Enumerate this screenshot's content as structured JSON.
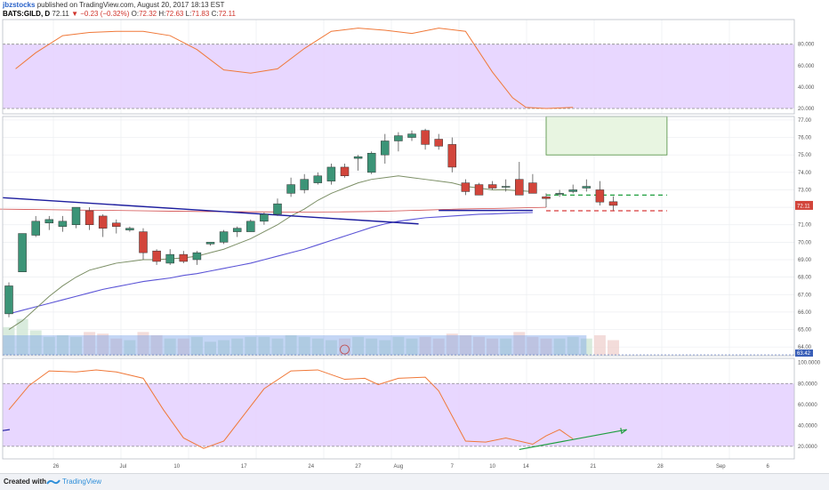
{
  "header": {
    "author": "jbzstocks",
    "published": "published on TradingView.com, August 20, 2017 18:13 EST",
    "symbol": "BATS:GILD, D",
    "price": "72.11",
    "change": "−0.23 (−0.32%)",
    "open_label": "O:",
    "open": "72.32",
    "high_label": "H:",
    "high": "72.63",
    "low_label": "L:",
    "low": "71.83",
    "close_label": "C:",
    "close": "72.11"
  },
  "footer": {
    "created_with": "Created with",
    "brand": "TradingView"
  },
  "colors": {
    "up": "#3c9477",
    "down": "#d2453b",
    "osc_band": "#e6d3ff",
    "osc_line": "#f07838",
    "ma_long": "#5b54d6",
    "ma_short": "#7c8f66",
    "trend_blue": "#1d1d9e",
    "target_green": "#1e9e3e",
    "target_red": "#d63a3a"
  },
  "chart_data": [
    {
      "type": "line",
      "panel": "oscillator-top",
      "y_ticks": [
        "80.000",
        "60.000",
        "40.000",
        "20.000"
      ],
      "ylim": [
        15,
        103
      ],
      "band": [
        20,
        80
      ],
      "series": [
        {
          "x": [
            0.5,
            2,
            4,
            6,
            8,
            10,
            12,
            14,
            16,
            18,
            20,
            22,
            24,
            26,
            28,
            30,
            32,
            34,
            36,
            37.5,
            38.5,
            40,
            42
          ],
          "values": [
            57,
            72,
            88,
            91,
            92,
            92,
            88,
            75,
            56,
            53,
            57,
            76,
            92,
            95,
            93,
            90,
            95,
            92,
            54,
            30,
            21,
            20,
            21
          ]
        }
      ]
    },
    {
      "type": "candlestick",
      "panel": "price",
      "x_ticks": [
        "26",
        "Jul",
        "10",
        "17",
        "24",
        "27",
        "Aug",
        "7",
        "10",
        "14",
        "21",
        "28",
        "Sep",
        "6"
      ],
      "y_ticks": [
        "77.00",
        "76.00",
        "75.00",
        "74.00",
        "73.00",
        "72.00",
        "71.00",
        "70.00",
        "69.00",
        "68.00",
        "67.00",
        "66.00",
        "65.00",
        "64.00"
      ],
      "ylim": [
        63.5,
        77.2
      ],
      "last_price": "72.11",
      "volume_label": "63.42",
      "candles": [
        {
          "o": 65.9,
          "h": 67.7,
          "l": 65.7,
          "c": 67.5
        },
        {
          "o": 68.3,
          "h": 70.5,
          "l": 68.3,
          "c": 70.5
        },
        {
          "o": 70.4,
          "h": 71.5,
          "l": 70.3,
          "c": 71.2
        },
        {
          "o": 71.1,
          "h": 71.5,
          "l": 70.7,
          "c": 71.3
        },
        {
          "o": 70.9,
          "h": 71.5,
          "l": 70.6,
          "c": 71.2
        },
        {
          "o": 71.0,
          "h": 72.0,
          "l": 70.8,
          "c": 72.0
        },
        {
          "o": 71.8,
          "h": 72.0,
          "l": 70.7,
          "c": 71.0
        },
        {
          "o": 71.5,
          "h": 71.6,
          "l": 70.3,
          "c": 70.8
        },
        {
          "o": 71.1,
          "h": 71.3,
          "l": 70.5,
          "c": 70.9
        },
        {
          "o": 70.7,
          "h": 70.9,
          "l": 70.6,
          "c": 70.8
        },
        {
          "o": 70.6,
          "h": 70.8,
          "l": 69.0,
          "c": 69.4
        },
        {
          "o": 69.5,
          "h": 69.6,
          "l": 68.7,
          "c": 68.9
        },
        {
          "o": 68.8,
          "h": 69.6,
          "l": 68.7,
          "c": 69.3
        },
        {
          "o": 69.3,
          "h": 69.5,
          "l": 68.8,
          "c": 68.9
        },
        {
          "o": 69.0,
          "h": 69.5,
          "l": 68.7,
          "c": 69.4
        },
        {
          "o": 69.9,
          "h": 70.0,
          "l": 69.8,
          "c": 70.0
        },
        {
          "o": 70.0,
          "h": 70.7,
          "l": 69.9,
          "c": 70.6
        },
        {
          "o": 70.6,
          "h": 70.9,
          "l": 70.3,
          "c": 70.8
        },
        {
          "o": 70.6,
          "h": 71.3,
          "l": 70.6,
          "c": 71.2
        },
        {
          "o": 71.2,
          "h": 71.7,
          "l": 71.0,
          "c": 71.6
        },
        {
          "o": 71.6,
          "h": 72.5,
          "l": 71.5,
          "c": 72.2
        },
        {
          "o": 72.8,
          "h": 73.7,
          "l": 72.6,
          "c": 73.3
        },
        {
          "o": 73.0,
          "h": 73.9,
          "l": 72.8,
          "c": 73.6
        },
        {
          "o": 73.4,
          "h": 74.0,
          "l": 73.3,
          "c": 73.8
        },
        {
          "o": 73.5,
          "h": 74.5,
          "l": 73.3,
          "c": 74.3
        },
        {
          "o": 74.3,
          "h": 74.5,
          "l": 73.7,
          "c": 73.8
        },
        {
          "o": 74.8,
          "h": 75.0,
          "l": 74.1,
          "c": 74.9
        },
        {
          "o": 74.0,
          "h": 75.2,
          "l": 73.9,
          "c": 75.1
        },
        {
          "o": 75.0,
          "h": 76.2,
          "l": 74.5,
          "c": 75.8
        },
        {
          "o": 75.8,
          "h": 76.3,
          "l": 75.2,
          "c": 76.1
        },
        {
          "o": 76.0,
          "h": 76.4,
          "l": 75.8,
          "c": 76.2
        },
        {
          "o": 76.4,
          "h": 76.5,
          "l": 75.3,
          "c": 75.6
        },
        {
          "o": 75.9,
          "h": 76.2,
          "l": 75.3,
          "c": 75.5
        },
        {
          "o": 75.6,
          "h": 76.0,
          "l": 74.0,
          "c": 74.3
        },
        {
          "o": 73.4,
          "h": 73.6,
          "l": 72.7,
          "c": 72.9
        },
        {
          "o": 73.3,
          "h": 73.4,
          "l": 72.7,
          "c": 72.7
        },
        {
          "o": 73.3,
          "h": 73.5,
          "l": 73.0,
          "c": 73.1
        },
        {
          "o": 73.2,
          "h": 73.6,
          "l": 72.9,
          "c": 73.2
        },
        {
          "o": 73.6,
          "h": 74.6,
          "l": 72.7,
          "c": 72.7
        },
        {
          "o": 73.4,
          "h": 73.9,
          "l": 72.9,
          "c": 72.8
        },
        {
          "o": 72.6,
          "h": 72.8,
          "l": 72.0,
          "c": 72.5
        },
        {
          "o": 72.8,
          "h": 73.0,
          "l": 72.6,
          "c": 72.8
        },
        {
          "o": 72.9,
          "h": 73.3,
          "l": 72.8,
          "c": 73.0
        },
        {
          "o": 73.1,
          "h": 73.6,
          "l": 72.9,
          "c": 73.2
        },
        {
          "o": 73.0,
          "h": 73.5,
          "l": 72.1,
          "c": 72.3
        },
        {
          "o": 72.32,
          "h": 72.63,
          "l": 71.83,
          "c": 72.11
        }
      ],
      "volume": [
        85,
        110,
        75,
        55,
        60,
        55,
        70,
        65,
        50,
        45,
        70,
        60,
        50,
        50,
        55,
        40,
        45,
        50,
        55,
        55,
        50,
        60,
        55,
        50,
        45,
        50,
        55,
        50,
        45,
        55,
        50,
        55,
        50,
        65,
        60,
        55,
        50,
        50,
        70,
        55,
        50,
        50,
        55,
        50,
        60,
        45
      ],
      "ma_short": [
        65.0,
        65.5,
        66.2,
        66.9,
        67.5,
        68.0,
        68.4,
        68.6,
        68.8,
        68.9,
        69.0,
        69.0,
        69.05,
        69.1,
        69.2,
        69.4,
        69.6,
        69.9,
        70.2,
        70.6,
        71.0,
        71.5,
        71.9,
        72.4,
        72.8,
        73.1,
        73.4,
        73.6,
        73.7,
        73.8,
        73.7,
        73.6,
        73.5,
        73.4,
        73.2,
        73.1,
        73.0,
        73.0,
        72.95,
        72.9
      ],
      "ma_long": [
        65.9,
        66.1,
        66.3,
        66.5,
        66.7,
        66.9,
        67.1,
        67.3,
        67.45,
        67.6,
        67.75,
        67.85,
        67.95,
        68.1,
        68.2,
        68.35,
        68.5,
        68.65,
        68.8,
        69.0,
        69.2,
        69.4,
        69.6,
        69.85,
        70.1,
        70.35,
        70.6,
        70.85,
        71.05,
        71.2,
        71.3,
        71.4,
        71.45,
        71.5,
        71.55,
        71.6,
        71.62,
        71.65,
        71.68,
        71.7
      ],
      "ma_red": [
        71.9,
        71.88,
        71.86,
        71.84,
        71.82,
        71.8,
        71.78,
        71.76,
        71.75,
        71.74,
        71.73,
        71.73,
        71.74,
        71.76,
        71.8,
        71.85,
        71.9,
        71.93,
        71.96,
        72.0
      ],
      "trendline": [
        [
          -1,
          72.55
        ],
        [
          30.5,
          71.05
        ]
      ],
      "support_line": [
        [
          32,
          71.82
        ],
        [
          39,
          71.82
        ]
      ],
      "target_box": [
        40,
        75.0,
        49,
        77.2
      ],
      "target_line_green": [
        [
          40,
          72.7
        ],
        [
          49,
          72.7
        ]
      ],
      "target_line_red": [
        [
          40,
          71.8
        ],
        [
          49,
          71.8
        ]
      ]
    },
    {
      "type": "line",
      "panel": "oscillator-bottom",
      "y_ticks": [
        "100.0000",
        "80.0000",
        "60.0000",
        "40.0000",
        "20.0000"
      ],
      "ylim": [
        8,
        104
      ],
      "band": [
        20,
        80
      ],
      "series": [
        {
          "x": [
            0,
            1.5,
            3,
            5,
            6.5,
            8,
            10,
            11.5,
            13,
            14.5,
            16,
            17.5,
            19,
            21,
            23,
            25,
            26.5,
            27.5,
            29,
            31,
            32,
            34,
            35.5,
            37,
            38,
            39,
            40,
            41,
            42
          ],
          "values": [
            55,
            78,
            92,
            91,
            93,
            91,
            85,
            55,
            28,
            18,
            25,
            50,
            75,
            92,
            93,
            84,
            85,
            79,
            85,
            86,
            73,
            25,
            24,
            28,
            25,
            22,
            30,
            36,
            27
          ]
        }
      ],
      "divergence_arrow": [
        [
          38,
          17
        ],
        [
          46,
          36
        ]
      ]
    }
  ]
}
